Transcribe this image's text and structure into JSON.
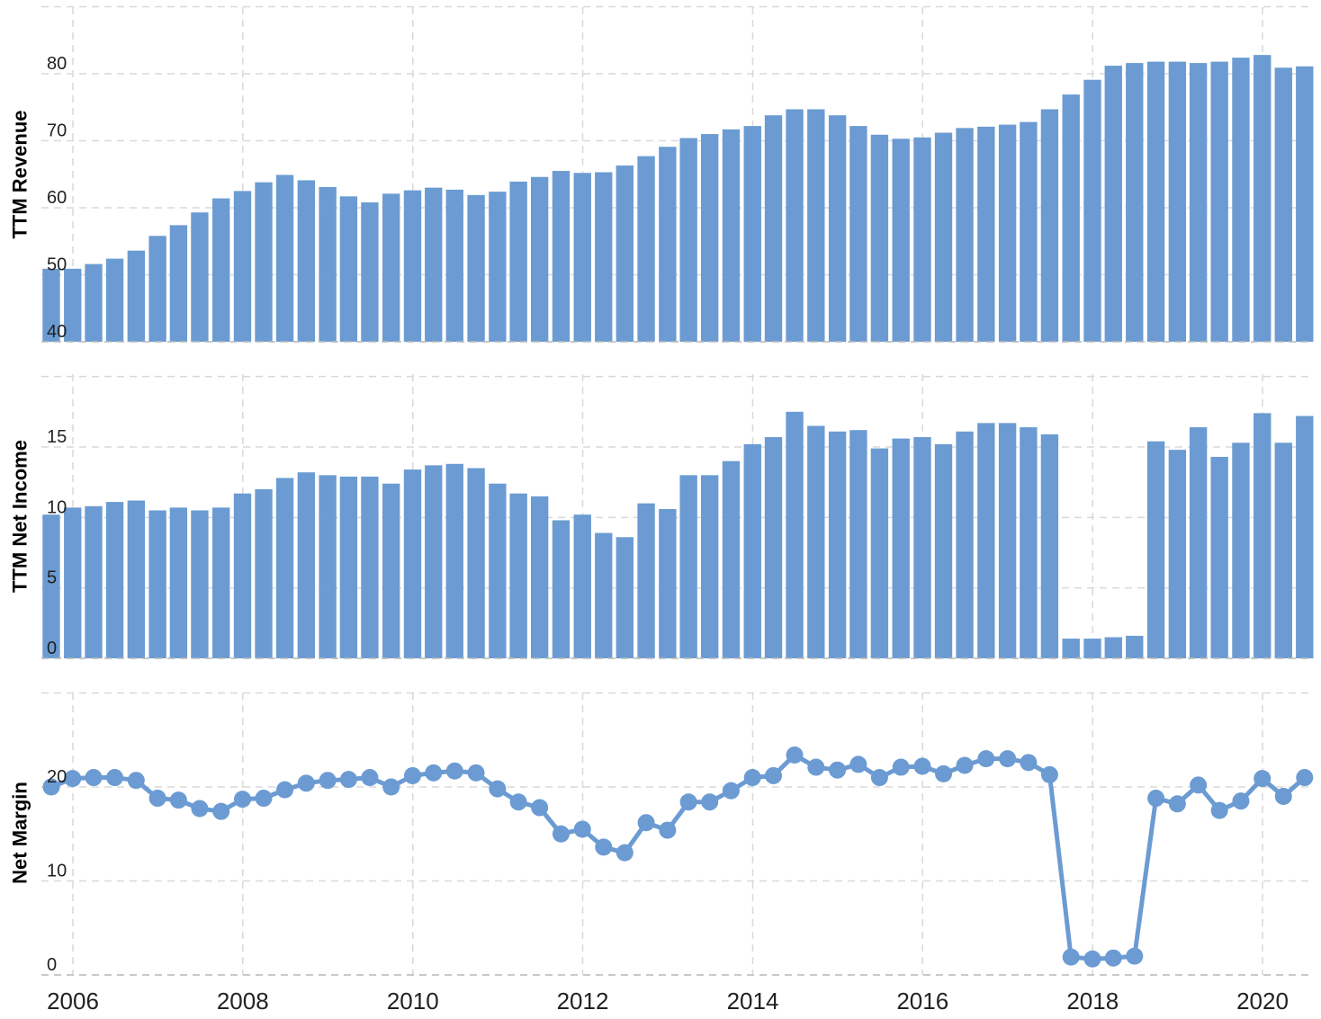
{
  "chart_data": [
    {
      "type": "bar",
      "ylabel": "TTM Revenue",
      "ylim": [
        40,
        90
      ],
      "yticks": [
        40,
        50,
        60,
        70,
        80
      ],
      "grid": true,
      "color": "#6b9bd2",
      "x": [
        "2005-09-30",
        "2005-12-31",
        "2006-03-31",
        "2006-06-30",
        "2006-09-30",
        "2006-12-31",
        "2007-03-31",
        "2007-06-30",
        "2007-09-30",
        "2007-12-31",
        "2008-03-31",
        "2008-06-30",
        "2008-09-30",
        "2008-12-31",
        "2009-03-31",
        "2009-06-30",
        "2009-09-30",
        "2009-12-31",
        "2010-03-31",
        "2010-06-30",
        "2010-09-30",
        "2010-12-31",
        "2011-03-31",
        "2011-06-30",
        "2011-09-30",
        "2011-12-31",
        "2012-03-31",
        "2012-06-30",
        "2012-09-30",
        "2012-12-31",
        "2013-03-31",
        "2013-06-30",
        "2013-09-30",
        "2013-12-31",
        "2014-03-31",
        "2014-06-30",
        "2014-09-30",
        "2014-12-31",
        "2015-03-31",
        "2015-06-30",
        "2015-09-30",
        "2015-12-31",
        "2016-03-31",
        "2016-06-30",
        "2016-09-30",
        "2016-12-31",
        "2017-03-31",
        "2017-06-30",
        "2017-09-30",
        "2017-12-31",
        "2018-03-31",
        "2018-06-30",
        "2018-09-30",
        "2018-12-31",
        "2019-03-31",
        "2019-06-30",
        "2019-09-30",
        "2019-12-31",
        "2020-03-31",
        "2020-06-30"
      ],
      "values": [
        50.9,
        50.9,
        51.6,
        52.4,
        53.6,
        55.8,
        57.4,
        59.3,
        61.4,
        62.5,
        63.8,
        64.9,
        64.1,
        63.1,
        61.7,
        60.8,
        62.1,
        62.6,
        63.0,
        62.7,
        61.9,
        62.4,
        63.9,
        64.6,
        65.5,
        65.2,
        65.3,
        66.3,
        67.7,
        69.1,
        70.4,
        71.0,
        71.7,
        72.2,
        73.8,
        74.7,
        74.7,
        73.8,
        72.2,
        70.9,
        70.3,
        70.5,
        71.2,
        71.9,
        72.1,
        72.4,
        72.8,
        74.7,
        76.9,
        79.1,
        81.2,
        81.6,
        81.8,
        81.8,
        81.6,
        81.8,
        82.4,
        82.8,
        80.9,
        81.1
      ]
    },
    {
      "type": "bar",
      "ylabel": "TTM Net Income",
      "ylim": [
        0,
        20
      ],
      "yticks": [
        0,
        5,
        10,
        15
      ],
      "grid": true,
      "color": "#6b9bd2",
      "x": [
        "2005-09-30",
        "2005-12-31",
        "2006-03-31",
        "2006-06-30",
        "2006-09-30",
        "2006-12-31",
        "2007-03-31",
        "2007-06-30",
        "2007-09-30",
        "2007-12-31",
        "2008-03-31",
        "2008-06-30",
        "2008-09-30",
        "2008-12-31",
        "2009-03-31",
        "2009-06-30",
        "2009-09-30",
        "2009-12-31",
        "2010-03-31",
        "2010-06-30",
        "2010-09-30",
        "2010-12-31",
        "2011-03-31",
        "2011-06-30",
        "2011-09-30",
        "2011-12-31",
        "2012-03-31",
        "2012-06-30",
        "2012-09-30",
        "2012-12-31",
        "2013-03-31",
        "2013-06-30",
        "2013-09-30",
        "2013-12-31",
        "2014-03-31",
        "2014-06-30",
        "2014-09-30",
        "2014-12-31",
        "2015-03-31",
        "2015-06-30",
        "2015-09-30",
        "2015-12-31",
        "2016-03-31",
        "2016-06-30",
        "2016-09-30",
        "2016-12-31",
        "2017-03-31",
        "2017-06-30",
        "2017-09-30",
        "2017-12-31",
        "2018-03-31",
        "2018-06-30",
        "2018-09-30",
        "2018-12-31",
        "2019-03-31",
        "2019-06-30",
        "2019-09-30",
        "2019-12-31",
        "2020-03-31",
        "2020-06-30"
      ],
      "values": [
        10.2,
        10.7,
        10.8,
        11.1,
        11.2,
        10.5,
        10.7,
        10.5,
        10.7,
        11.7,
        12.0,
        12.8,
        13.2,
        13.0,
        12.9,
        12.9,
        12.4,
        13.4,
        13.7,
        13.8,
        13.5,
        12.4,
        11.7,
        11.5,
        9.8,
        10.2,
        8.9,
        8.6,
        11.0,
        10.6,
        13.0,
        13.0,
        14.0,
        15.2,
        15.7,
        17.5,
        16.5,
        16.1,
        16.2,
        14.9,
        15.6,
        15.7,
        15.2,
        16.1,
        16.7,
        16.7,
        16.4,
        15.9,
        1.4,
        1.4,
        1.5,
        1.6,
        15.4,
        14.8,
        16.4,
        14.3,
        15.3,
        17.4,
        15.3,
        17.2
      ]
    },
    {
      "type": "line",
      "ylabel": "Net Margin",
      "ylim": [
        0,
        25
      ],
      "yticks": [
        0,
        10,
        20
      ],
      "grid": true,
      "color": "#6b9bd2",
      "x": [
        "2005-09-30",
        "2005-12-31",
        "2006-03-31",
        "2006-06-30",
        "2006-09-30",
        "2006-12-31",
        "2007-03-31",
        "2007-06-30",
        "2007-09-30",
        "2007-12-31",
        "2008-03-31",
        "2008-06-30",
        "2008-09-30",
        "2008-12-31",
        "2009-03-31",
        "2009-06-30",
        "2009-09-30",
        "2009-12-31",
        "2010-03-31",
        "2010-06-30",
        "2010-09-30",
        "2010-12-31",
        "2011-03-31",
        "2011-06-30",
        "2011-09-30",
        "2011-12-31",
        "2012-03-31",
        "2012-06-30",
        "2012-09-30",
        "2012-12-31",
        "2013-03-31",
        "2013-06-30",
        "2013-09-30",
        "2013-12-31",
        "2014-03-31",
        "2014-06-30",
        "2014-09-30",
        "2014-12-31",
        "2015-03-31",
        "2015-06-30",
        "2015-09-30",
        "2015-12-31",
        "2016-03-31",
        "2016-06-30",
        "2016-09-30",
        "2016-12-31",
        "2017-03-31",
        "2017-06-30",
        "2017-09-30",
        "2017-12-31",
        "2018-03-31",
        "2018-06-30",
        "2018-09-30",
        "2018-12-31",
        "2019-03-31",
        "2019-06-30",
        "2019-09-30",
        "2019-12-31",
        "2020-03-31",
        "2020-06-30"
      ],
      "values": [
        20.0,
        20.9,
        21.0,
        21.0,
        20.7,
        18.8,
        18.6,
        17.7,
        17.4,
        18.7,
        18.8,
        19.7,
        20.4,
        20.7,
        20.8,
        21.0,
        20.0,
        21.2,
        21.5,
        21.7,
        21.5,
        19.8,
        18.4,
        17.8,
        15.0,
        15.5,
        13.6,
        13.0,
        16.2,
        15.4,
        18.4,
        18.4,
        19.6,
        21.0,
        21.2,
        23.4,
        22.1,
        21.8,
        22.4,
        21.0,
        22.1,
        22.2,
        21.4,
        22.3,
        23.0,
        23.0,
        22.6,
        21.3,
        1.9,
        1.7,
        1.8,
        2.0,
        18.8,
        18.2,
        20.2,
        17.5,
        18.5,
        20.9,
        19.0,
        21.0
      ]
    }
  ],
  "x_axis": {
    "ticks": [
      "2006",
      "2008",
      "2010",
      "2012",
      "2014",
      "2016",
      "2018",
      "2020"
    ]
  }
}
